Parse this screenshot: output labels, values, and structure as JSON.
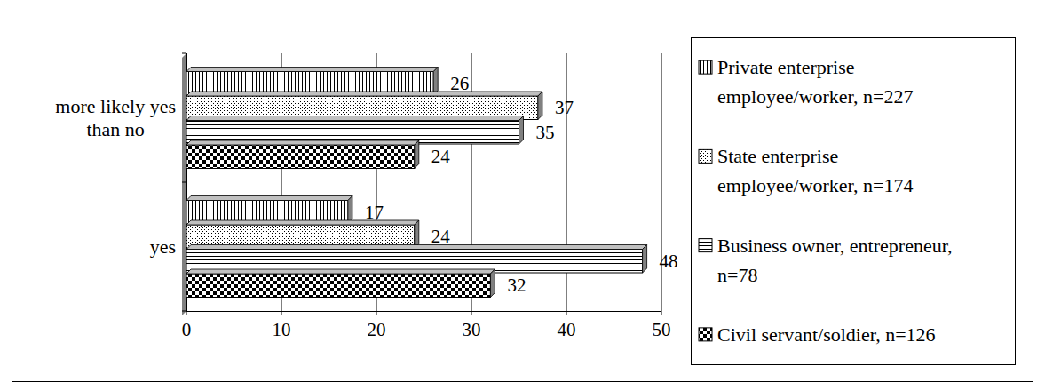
{
  "chart_data": {
    "type": "bar",
    "orientation": "horizontal",
    "categories": [
      "more likely yes than no",
      "yes"
    ],
    "series": [
      {
        "name": "Private enterprise employee/worker, n=227",
        "color": "#000000",
        "values": [
          26,
          17
        ]
      },
      {
        "name": "State enterprise employee/worker, n=174",
        "color": "#000000",
        "values": [
          37,
          24
        ]
      },
      {
        "name": "Business owner, entrepreneur, n=78",
        "color": "#000000",
        "values": [
          35,
          48
        ]
      },
      {
        "name": "Civil servant/soldier, n=126",
        "color": "#000000",
        "values": [
          24,
          32
        ]
      }
    ],
    "xlim": [
      0,
      50
    ],
    "xticks": [
      0,
      10,
      20,
      30,
      40,
      50
    ],
    "grid": true,
    "data_labels": true,
    "legend": "right"
  }
}
